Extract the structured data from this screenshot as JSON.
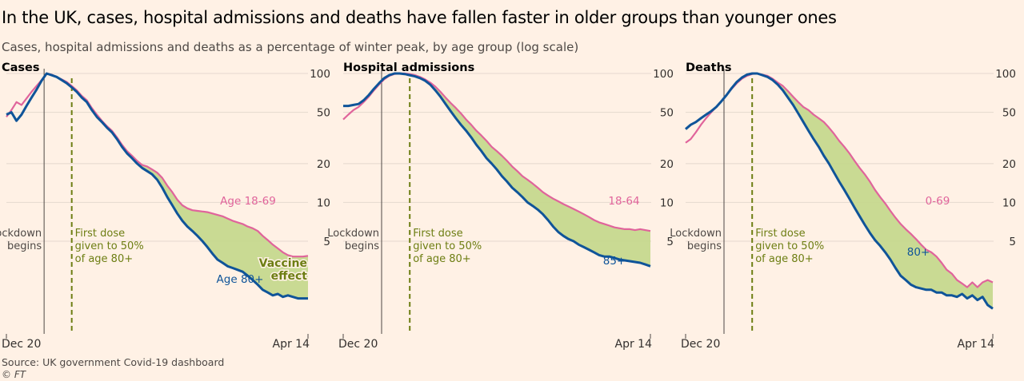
{
  "title": "In the UK, cases, hospital admissions and deaths have fallen faster in older groups than younger ones",
  "subtitle": "Cases, hospital admissions and deaths as a percentage of winter peak, by age group (log scale)",
  "source": "Source: UK government Covid-19 dashboard",
  "credit": "© FT",
  "colors": {
    "background": "#fff1e5",
    "older": "#0f5499",
    "younger": "#e0649b",
    "vaccine_fill": "#c6d88e",
    "dose_line": "#6d7e13",
    "grid": "#e4d8ce",
    "axis_text": "#33302e"
  },
  "chart_data": [
    {
      "type": "line",
      "title": "Cases",
      "scale": "log",
      "ylim": [
        1.6,
        100
      ],
      "yticks": [
        100,
        50,
        20,
        10,
        5
      ],
      "ytick_labels": [
        "100",
        "50",
        "20",
        "10",
        "5"
      ],
      "x_start_label": "Dec 20",
      "x_end_label": "Apr 14",
      "x_range_days": [
        0,
        120
      ],
      "lockdown_day": 15,
      "dose_day": 26,
      "lockdown_label": [
        "Lockdown",
        "begins"
      ],
      "dose_label": [
        "First dose",
        "given to 50%",
        "of age 80+"
      ],
      "annotation": [
        "Vaccine",
        "effect"
      ],
      "series": [
        {
          "name": "Age 18-69",
          "role": "younger",
          "x": [
            0,
            2,
            4,
            6,
            8,
            10,
            12,
            14,
            16,
            18,
            20,
            22,
            24,
            26,
            28,
            30,
            32,
            34,
            36,
            38,
            40,
            42,
            44,
            46,
            48,
            50,
            52,
            54,
            56,
            58,
            60,
            62,
            64,
            66,
            68,
            70,
            72,
            74,
            76,
            78,
            80,
            82,
            84,
            86,
            88,
            90,
            92,
            94,
            96,
            98,
            100,
            102,
            104,
            106,
            108,
            110,
            112,
            114,
            116,
            118,
            120
          ],
          "values": [
            46,
            52,
            60,
            57,
            64,
            72,
            80,
            89,
            100,
            98,
            94,
            90,
            86,
            80,
            74,
            67,
            62,
            54,
            48,
            43,
            39,
            36,
            32,
            28,
            25,
            23,
            21,
            19.5,
            19,
            18,
            17,
            15.5,
            13.5,
            12,
            10.5,
            9.5,
            9,
            8.7,
            8.6,
            8.5,
            8.4,
            8.2,
            8,
            7.8,
            7.5,
            7.2,
            7,
            6.8,
            6.5,
            6.3,
            6,
            5.5,
            5.1,
            4.7,
            4.4,
            4.1,
            3.9,
            3.8,
            3.8,
            3.8,
            3.85
          ]
        },
        {
          "name": "Age 80+",
          "role": "older",
          "x": [
            0,
            2,
            4,
            6,
            8,
            10,
            12,
            14,
            16,
            18,
            20,
            22,
            24,
            26,
            28,
            30,
            32,
            34,
            36,
            38,
            40,
            42,
            44,
            46,
            48,
            50,
            52,
            54,
            56,
            58,
            60,
            62,
            64,
            66,
            68,
            70,
            72,
            74,
            76,
            78,
            80,
            82,
            84,
            86,
            88,
            90,
            92,
            94,
            96,
            98,
            100,
            102,
            104,
            106,
            108,
            110,
            112,
            114,
            116,
            118,
            120
          ],
          "values": [
            48,
            50,
            43,
            48,
            56,
            65,
            75,
            88,
            100,
            97,
            94,
            89,
            84,
            78,
            72,
            65,
            60,
            52,
            46,
            42,
            38,
            35,
            31,
            27,
            24,
            22,
            20,
            18.5,
            17.5,
            16.5,
            15,
            13,
            11,
            9.5,
            8.2,
            7.2,
            6.5,
            6,
            5.5,
            5,
            4.5,
            4,
            3.6,
            3.4,
            3.2,
            3.1,
            3,
            2.9,
            2.7,
            2.5,
            2.3,
            2.1,
            2,
            1.9,
            1.95,
            1.85,
            1.9,
            1.85,
            1.8,
            1.8,
            1.8
          ]
        }
      ]
    },
    {
      "type": "line",
      "title": "Hospital admissions",
      "scale": "log",
      "ylim": [
        1.6,
        100
      ],
      "yticks": [
        100,
        50,
        20,
        10,
        5
      ],
      "ytick_labels": [
        "100",
        "50",
        "20",
        "10",
        "5"
      ],
      "x_start_label": "Dec 20",
      "x_end_label": "Apr 14",
      "x_range_days": [
        0,
        120
      ],
      "lockdown_day": 15,
      "dose_day": 26,
      "lockdown_label": [
        "Lockdown",
        "begins"
      ],
      "dose_label": [
        "First dose",
        "given to 50%",
        "of age 80+"
      ],
      "series": [
        {
          "name": "18-64",
          "role": "younger",
          "x": [
            0,
            2,
            4,
            6,
            8,
            10,
            12,
            14,
            16,
            18,
            20,
            22,
            24,
            26,
            28,
            30,
            32,
            34,
            36,
            38,
            40,
            42,
            44,
            46,
            48,
            50,
            52,
            54,
            56,
            58,
            60,
            62,
            64,
            66,
            68,
            70,
            72,
            74,
            76,
            78,
            80,
            82,
            84,
            86,
            88,
            90,
            92,
            94,
            96,
            98,
            100,
            102,
            104,
            106,
            108,
            110,
            112,
            114,
            116,
            118,
            120
          ],
          "values": [
            44,
            48,
            52,
            55,
            60,
            66,
            74,
            82,
            90,
            96,
            99,
            100,
            100,
            99,
            97,
            94,
            90,
            85,
            79,
            72,
            65,
            59,
            54,
            49,
            44,
            40,
            36,
            33,
            30,
            27,
            25,
            23,
            21,
            19,
            17.5,
            16,
            15,
            14,
            13,
            12,
            11.3,
            10.7,
            10.2,
            9.7,
            9.3,
            8.9,
            8.5,
            8.1,
            7.7,
            7.3,
            7,
            6.8,
            6.6,
            6.4,
            6.3,
            6.2,
            6.2,
            6.1,
            6.2,
            6.1,
            6
          ]
        },
        {
          "name": "85+",
          "role": "older",
          "x": [
            0,
            2,
            4,
            6,
            8,
            10,
            12,
            14,
            16,
            18,
            20,
            22,
            24,
            26,
            28,
            30,
            32,
            34,
            36,
            38,
            40,
            42,
            44,
            46,
            48,
            50,
            52,
            54,
            56,
            58,
            60,
            62,
            64,
            66,
            68,
            70,
            72,
            74,
            76,
            78,
            80,
            82,
            84,
            86,
            88,
            90,
            92,
            94,
            96,
            98,
            100,
            102,
            104,
            106,
            108,
            110,
            112,
            114,
            116,
            118,
            120
          ],
          "values": [
            56,
            56,
            57,
            58,
            62,
            68,
            76,
            84,
            92,
            97,
            100,
            100,
            99,
            97,
            95,
            92,
            88,
            82,
            74,
            66,
            58,
            51,
            45,
            40,
            36,
            32,
            28,
            25,
            22,
            20,
            18,
            16,
            14.5,
            13,
            12,
            11,
            10,
            9.4,
            8.8,
            8.1,
            7.3,
            6.5,
            5.9,
            5.5,
            5.2,
            5,
            4.7,
            4.5,
            4.3,
            4.1,
            3.9,
            3.8,
            3.8,
            3.7,
            3.6,
            3.55,
            3.5,
            3.45,
            3.4,
            3.3,
            3.2
          ]
        }
      ]
    },
    {
      "type": "line",
      "title": "Deaths",
      "scale": "log",
      "ylim": [
        1.6,
        100
      ],
      "yticks": [
        100,
        50,
        20,
        10,
        5
      ],
      "ytick_labels": [
        "100",
        "50",
        "20",
        "10",
        "5"
      ],
      "x_start_label": "Dec 20",
      "x_end_label": "Apr 14",
      "x_range_days": [
        0,
        120
      ],
      "lockdown_day": 15,
      "dose_day": 26,
      "lockdown_label": [
        "Lockdown",
        "begins"
      ],
      "dose_label": [
        "First dose",
        "given to 50%",
        "of age 80+"
      ],
      "series": [
        {
          "name": "0-69",
          "role": "younger",
          "x": [
            0,
            2,
            4,
            6,
            8,
            10,
            12,
            14,
            16,
            18,
            20,
            22,
            24,
            26,
            28,
            30,
            32,
            34,
            36,
            38,
            40,
            42,
            44,
            46,
            48,
            50,
            52,
            54,
            56,
            58,
            60,
            62,
            64,
            66,
            68,
            70,
            72,
            74,
            76,
            78,
            80,
            82,
            84,
            86,
            88,
            90,
            92,
            94,
            96,
            98,
            100,
            102,
            104,
            106,
            108,
            110,
            112,
            114,
            116,
            118,
            120
          ],
          "values": [
            29,
            31,
            35,
            40,
            45,
            50,
            55,
            61,
            68,
            76,
            84,
            91,
            96,
            99,
            100,
            98,
            96,
            91,
            85,
            80,
            73,
            66,
            60,
            55,
            52,
            48,
            45,
            42,
            38,
            34,
            30,
            27,
            24,
            21,
            18.5,
            16.5,
            14.5,
            12.5,
            11,
            9.8,
            8.6,
            7.6,
            6.8,
            6.2,
            5.7,
            5.2,
            4.7,
            4.3,
            4.1,
            3.8,
            3.4,
            3,
            2.8,
            2.5,
            2.35,
            2.2,
            2.4,
            2.2,
            2.4,
            2.5,
            2.4
          ]
        },
        {
          "name": "80+",
          "role": "older",
          "x": [
            0,
            2,
            4,
            6,
            8,
            10,
            12,
            14,
            16,
            18,
            20,
            22,
            24,
            26,
            28,
            30,
            32,
            34,
            36,
            38,
            40,
            42,
            44,
            46,
            48,
            50,
            52,
            54,
            56,
            58,
            60,
            62,
            64,
            66,
            68,
            70,
            72,
            74,
            76,
            78,
            80,
            82,
            84,
            86,
            88,
            90,
            92,
            94,
            96,
            98,
            100,
            102,
            104,
            106,
            108,
            110,
            112,
            114,
            116,
            118,
            120
          ],
          "values": [
            37,
            40,
            42,
            45,
            48,
            51,
            55,
            61,
            68,
            77,
            86,
            93,
            98,
            100,
            100,
            97,
            94,
            89,
            82,
            74,
            65,
            57,
            49,
            42,
            36,
            31,
            27,
            23,
            20,
            17,
            14.5,
            12.5,
            10.7,
            9.1,
            7.8,
            6.7,
            5.8,
            5.1,
            4.6,
            4.1,
            3.6,
            3.1,
            2.7,
            2.5,
            2.3,
            2.2,
            2.15,
            2.1,
            2.1,
            2,
            2,
            1.9,
            1.9,
            1.85,
            1.95,
            1.8,
            1.9,
            1.75,
            1.85,
            1.6,
            1.5
          ]
        }
      ]
    }
  ]
}
